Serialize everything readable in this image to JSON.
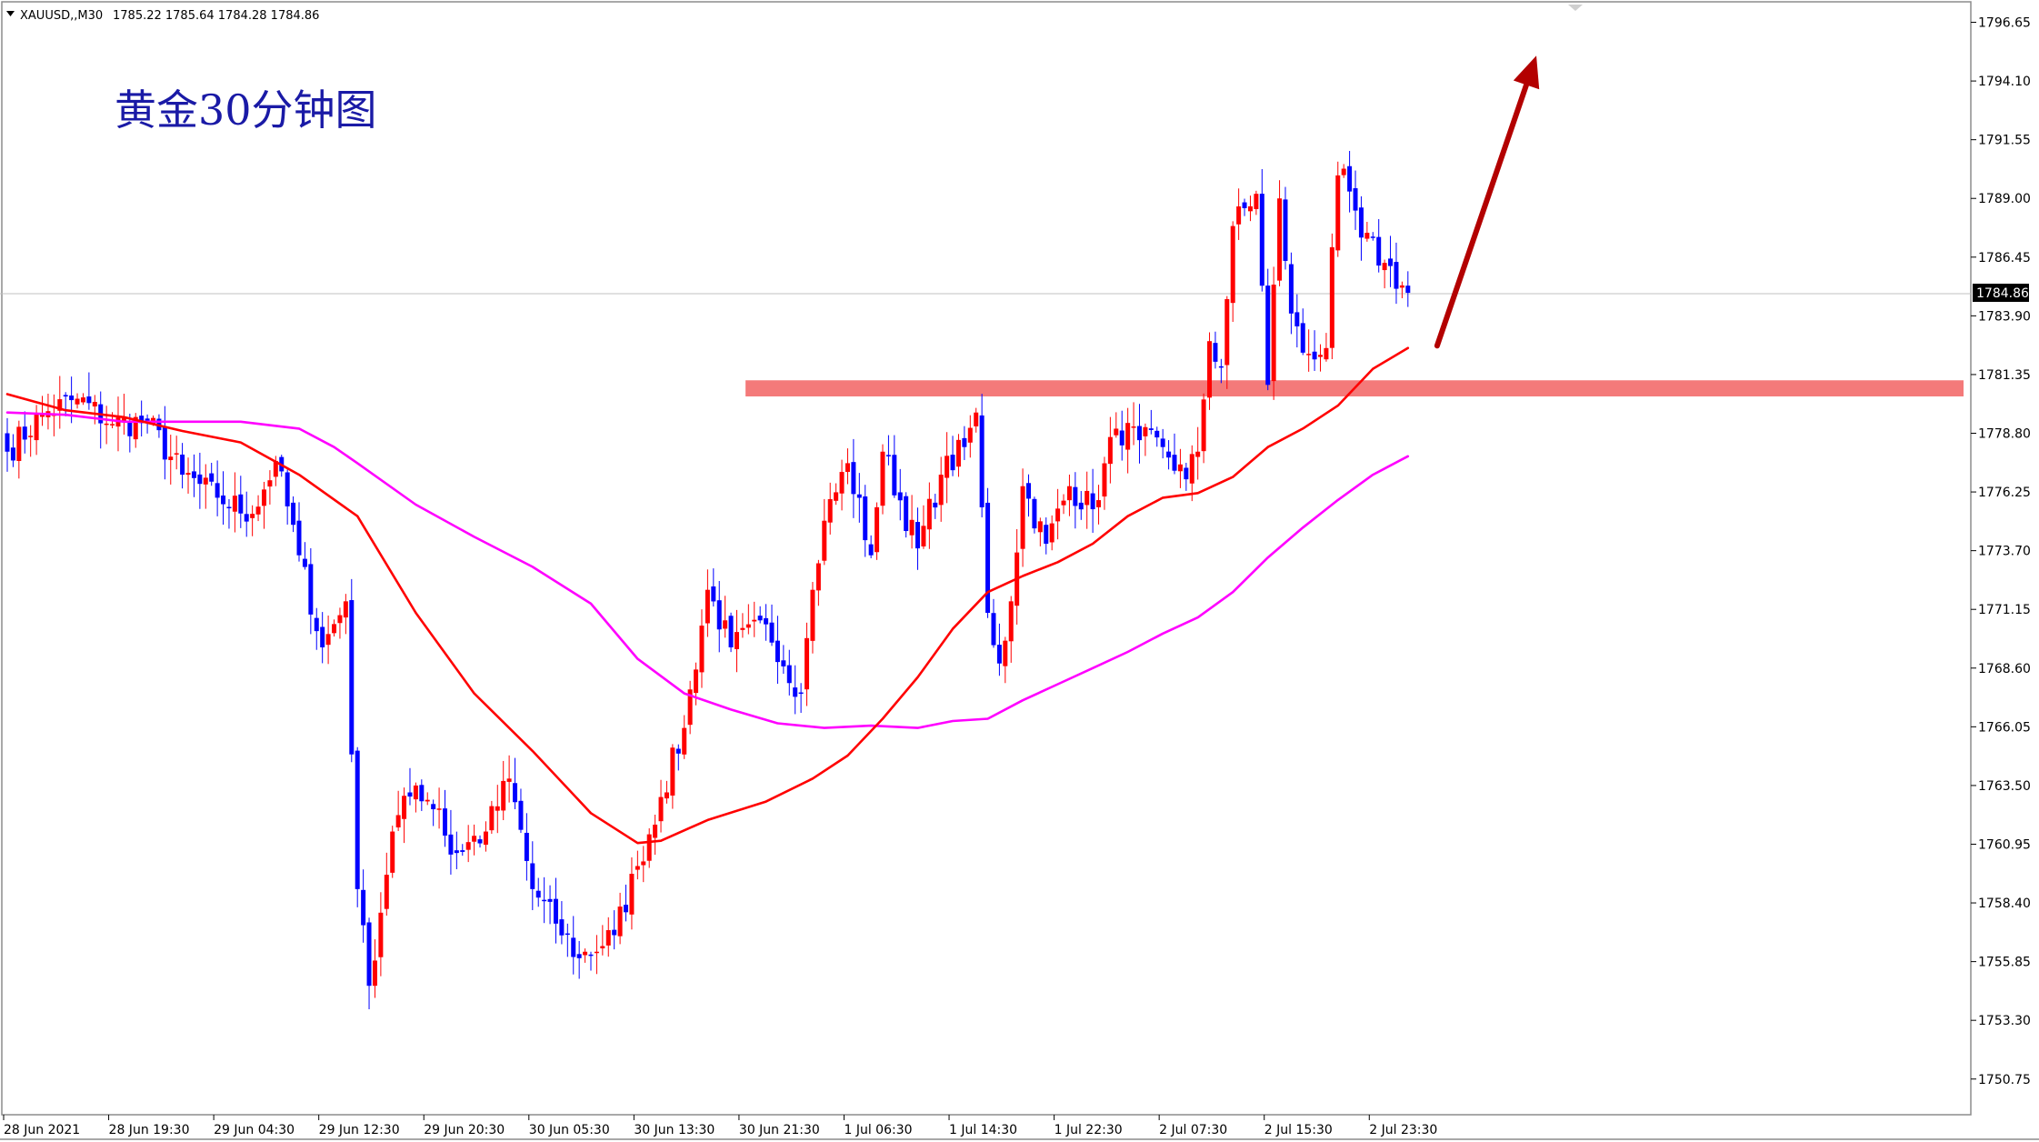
{
  "header": {
    "symbol_label": "XAUUSD,,M30",
    "ohlc": "1785.22 1785.64 1784.28 1784.86"
  },
  "annotation_title": "黄金30分钟图",
  "current_price_label": "1784.86",
  "colors": {
    "bull_candle": "#ff0000",
    "bear_candle": "#0000ff",
    "ma_fast": "#ff0000",
    "ma_slow": "#ff00ff",
    "resistance_zone": "#f47a7a",
    "arrow": "#b30000",
    "title": "#1a1aa6"
  },
  "chart_data": {
    "type": "candlestick",
    "symbol": "XAUUSD",
    "timeframe": "M30",
    "ylim": [
      1749.2,
      1797.5
    ],
    "y_ticks": [
      "1796.65",
      "1794.10",
      "1791.55",
      "1789.00",
      "1786.45",
      "1783.90",
      "1781.35",
      "1778.80",
      "1776.25",
      "1773.70",
      "1771.15",
      "1768.60",
      "1766.05",
      "1763.50",
      "1760.95",
      "1758.40",
      "1755.85",
      "1753.30",
      "1750.75"
    ],
    "x_ticks": [
      "28 Jun 2021",
      "28 Jun 19:30",
      "29 Jun 04:30",
      "29 Jun 12:30",
      "29 Jun 20:30",
      "30 Jun 05:30",
      "30 Jun 13:30",
      "30 Jun 21:30",
      "1 Jul 06:30",
      "1 Jul 14:30",
      "1 Jul 22:30",
      "2 Jul 07:30",
      "2 Jul 15:30",
      "2 Jul 23:30"
    ],
    "x_tick_bar_index": [
      0,
      18,
      36,
      54,
      72,
      90,
      108,
      126,
      144,
      162,
      180,
      198,
      216,
      234
    ],
    "last_price": 1784.86,
    "resistance_zone": [
      1780.4,
      1781.1
    ],
    "arrow": {
      "from": [
        245,
        1782.6
      ],
      "to": [
        262,
        1795.2
      ]
    },
    "keypoints": [
      [
        0,
        1778
      ],
      [
        6,
        1779.6
      ],
      [
        12,
        1780.3
      ],
      [
        18,
        1779.2
      ],
      [
        24,
        1779.3
      ],
      [
        30,
        1777
      ],
      [
        36,
        1776
      ],
      [
        42,
        1775.3
      ],
      [
        46,
        1777.6
      ],
      [
        50,
        1773.5
      ],
      [
        54,
        1769.5
      ],
      [
        58,
        1771.5
      ],
      [
        60,
        1759
      ],
      [
        62,
        1754.8
      ],
      [
        66,
        1761.5
      ],
      [
        70,
        1763.5
      ],
      [
        74,
        1762.5
      ],
      [
        76,
        1760.5
      ],
      [
        82,
        1761.5
      ],
      [
        86,
        1763.8
      ],
      [
        90,
        1759
      ],
      [
        94,
        1757.5
      ],
      [
        98,
        1756
      ],
      [
        104,
        1757
      ],
      [
        108,
        1760
      ],
      [
        112,
        1763
      ],
      [
        116,
        1766
      ],
      [
        120,
        1772
      ],
      [
        124,
        1769.5
      ],
      [
        130,
        1770.5
      ],
      [
        136,
        1767.5
      ],
      [
        138,
        1772
      ],
      [
        140,
        1775
      ],
      [
        144,
        1777.5
      ],
      [
        148,
        1773.5
      ],
      [
        150,
        1778
      ],
      [
        156,
        1773.8
      ],
      [
        160,
        1777
      ],
      [
        164,
        1778.2
      ],
      [
        166,
        1779.7
      ],
      [
        168,
        1771
      ],
      [
        170,
        1768.8
      ],
      [
        172,
        1771.5
      ],
      [
        174,
        1776.5
      ],
      [
        178,
        1774
      ],
      [
        182,
        1776.5
      ],
      [
        186,
        1775.5
      ],
      [
        190,
        1779
      ],
      [
        194,
        1778.5
      ],
      [
        198,
        1778.2
      ],
      [
        202,
        1776.8
      ],
      [
        204,
        1778
      ],
      [
        206,
        1782.8
      ],
      [
        208,
        1781.7
      ],
      [
        210,
        1787.8
      ],
      [
        214,
        1789.2
      ],
      [
        216,
        1780.9
      ],
      [
        218,
        1789
      ],
      [
        220,
        1784
      ],
      [
        222,
        1782.3
      ],
      [
        226,
        1782.5
      ],
      [
        228,
        1790
      ],
      [
        230,
        1789.3
      ],
      [
        232,
        1787.3
      ],
      [
        236,
        1786.2
      ],
      [
        240,
        1784.9
      ]
    ],
    "ma_fast": [
      [
        0,
        1780.5
      ],
      [
        10,
        1779.8
      ],
      [
        20,
        1779.5
      ],
      [
        30,
        1778.9
      ],
      [
        40,
        1778.4
      ],
      [
        50,
        1777
      ],
      [
        60,
        1775.2
      ],
      [
        70,
        1771
      ],
      [
        80,
        1767.5
      ],
      [
        90,
        1765
      ],
      [
        100,
        1762.3
      ],
      [
        108,
        1761
      ],
      [
        112,
        1761.1
      ],
      [
        120,
        1762
      ],
      [
        130,
        1762.8
      ],
      [
        138,
        1763.8
      ],
      [
        144,
        1764.8
      ],
      [
        150,
        1766.4
      ],
      [
        156,
        1768.2
      ],
      [
        162,
        1770.3
      ],
      [
        168,
        1771.9
      ],
      [
        174,
        1772.6
      ],
      [
        180,
        1773.2
      ],
      [
        186,
        1774
      ],
      [
        192,
        1775.2
      ],
      [
        198,
        1776
      ],
      [
        204,
        1776.2
      ],
      [
        210,
        1776.9
      ],
      [
        216,
        1778.2
      ],
      [
        222,
        1779
      ],
      [
        228,
        1780
      ],
      [
        234,
        1781.6
      ],
      [
        240,
        1782.5
      ]
    ],
    "ma_slow": [
      [
        0,
        1779.7
      ],
      [
        10,
        1779.6
      ],
      [
        20,
        1779.3
      ],
      [
        30,
        1779.3
      ],
      [
        40,
        1779.3
      ],
      [
        50,
        1779
      ],
      [
        56,
        1778.2
      ],
      [
        60,
        1777.5
      ],
      [
        70,
        1775.7
      ],
      [
        80,
        1774.3
      ],
      [
        90,
        1773
      ],
      [
        100,
        1771.4
      ],
      [
        108,
        1769
      ],
      [
        116,
        1767.5
      ],
      [
        124,
        1766.8
      ],
      [
        132,
        1766.2
      ],
      [
        140,
        1766
      ],
      [
        148,
        1766.1
      ],
      [
        156,
        1766
      ],
      [
        162,
        1766.3
      ],
      [
        168,
        1766.4
      ],
      [
        174,
        1767.2
      ],
      [
        180,
        1767.9
      ],
      [
        186,
        1768.6
      ],
      [
        192,
        1769.3
      ],
      [
        198,
        1770.1
      ],
      [
        204,
        1770.8
      ],
      [
        210,
        1771.9
      ],
      [
        216,
        1773.4
      ],
      [
        222,
        1774.7
      ],
      [
        228,
        1775.9
      ],
      [
        234,
        1777
      ],
      [
        240,
        1777.8
      ]
    ]
  }
}
